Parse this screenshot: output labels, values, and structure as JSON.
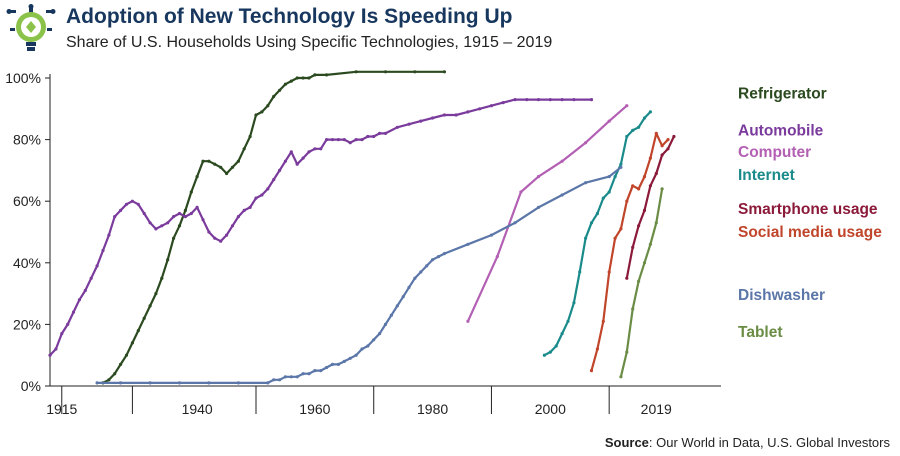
{
  "header": {
    "title": "Adoption of New Technology Is Speeding Up",
    "subtitle": "Share of U.S. Households Using Specific Technologies, 1915 – 2019",
    "logo_icon": "lightbulb-gear-icon"
  },
  "footer": {
    "source_label": "Source",
    "source_text": ": Our World in Data, U.S. Global Investors"
  },
  "chart_data": {
    "type": "line",
    "title": "Adoption of New Technology Is Speeding Up",
    "xlabel": "",
    "ylabel": "",
    "xlim": [
      1913,
      2027
    ],
    "ylim": [
      0,
      100
    ],
    "y_ticks": [
      0,
      20,
      40,
      60,
      80,
      100
    ],
    "y_tick_labels": [
      "0%",
      "20%",
      "40%",
      "60%",
      "80%",
      "100%"
    ],
    "x_tick_positions": [
      1915,
      1927,
      1948,
      1968,
      1988,
      2008
    ],
    "x_labels": [
      {
        "x": 1915,
        "label": "1915"
      },
      {
        "x": 1938,
        "label": "1940"
      },
      {
        "x": 1958,
        "label": "1960"
      },
      {
        "x": 1978,
        "label": "1980"
      },
      {
        "x": 1998,
        "label": "2000"
      },
      {
        "x": 2016,
        "label": "2019"
      }
    ],
    "series": [
      {
        "name": "Refrigerator",
        "color": "#2b4a1f",
        "legend_y": 95,
        "points": [
          [
            1922,
            1
          ],
          [
            1923,
            2
          ],
          [
            1924,
            4
          ],
          [
            1925,
            7
          ],
          [
            1926,
            10
          ],
          [
            1927,
            14
          ],
          [
            1928,
            18
          ],
          [
            1929,
            22
          ],
          [
            1930,
            26
          ],
          [
            1931,
            30
          ],
          [
            1932,
            35
          ],
          [
            1933,
            41
          ],
          [
            1934,
            48
          ],
          [
            1935,
            52
          ],
          [
            1936,
            57
          ],
          [
            1937,
            63
          ],
          [
            1938,
            68
          ],
          [
            1939,
            73
          ],
          [
            1940,
            73
          ],
          [
            1941,
            72
          ],
          [
            1942,
            71
          ],
          [
            1943,
            69
          ],
          [
            1944,
            71
          ],
          [
            1945,
            73
          ],
          [
            1946,
            77
          ],
          [
            1947,
            81
          ],
          [
            1948,
            88
          ],
          [
            1949,
            89
          ],
          [
            1950,
            91
          ],
          [
            1951,
            94
          ],
          [
            1952,
            96
          ],
          [
            1953,
            98
          ],
          [
            1954,
            99
          ],
          [
            1955,
            100
          ],
          [
            1956,
            100
          ],
          [
            1957,
            100
          ],
          [
            1958,
            101
          ],
          [
            1960,
            101
          ],
          [
            1965,
            102
          ],
          [
            1970,
            102
          ],
          [
            1975,
            102
          ],
          [
            1980,
            102
          ]
        ]
      },
      {
        "name": "Automobile",
        "color": "#7a3b9c",
        "legend_y": 83,
        "points": [
          [
            1913,
            10
          ],
          [
            1914,
            12
          ],
          [
            1915,
            17
          ],
          [
            1916,
            20
          ],
          [
            1917,
            24
          ],
          [
            1918,
            28
          ],
          [
            1919,
            31
          ],
          [
            1920,
            35
          ],
          [
            1921,
            39
          ],
          [
            1922,
            44
          ],
          [
            1923,
            49
          ],
          [
            1924,
            55
          ],
          [
            1925,
            57
          ],
          [
            1926,
            59
          ],
          [
            1927,
            60
          ],
          [
            1928,
            59
          ],
          [
            1929,
            56
          ],
          [
            1930,
            53
          ],
          [
            1931,
            51
          ],
          [
            1932,
            52
          ],
          [
            1933,
            53
          ],
          [
            1934,
            55
          ],
          [
            1935,
            56
          ],
          [
            1936,
            55
          ],
          [
            1937,
            56
          ],
          [
            1938,
            58
          ],
          [
            1939,
            54
          ],
          [
            1940,
            50
          ],
          [
            1941,
            48
          ],
          [
            1942,
            47
          ],
          [
            1943,
            49
          ],
          [
            1944,
            52
          ],
          [
            1945,
            55
          ],
          [
            1946,
            57
          ],
          [
            1947,
            58
          ],
          [
            1948,
            61
          ],
          [
            1949,
            62
          ],
          [
            1950,
            64
          ],
          [
            1951,
            67
          ],
          [
            1952,
            70
          ],
          [
            1953,
            73
          ],
          [
            1954,
            76
          ],
          [
            1955,
            72
          ],
          [
            1956,
            74
          ],
          [
            1957,
            76
          ],
          [
            1958,
            77
          ],
          [
            1959,
            77
          ],
          [
            1960,
            80
          ],
          [
            1961,
            80
          ],
          [
            1962,
            80
          ],
          [
            1963,
            80
          ],
          [
            1964,
            79
          ],
          [
            1965,
            80
          ],
          [
            1966,
            80
          ],
          [
            1967,
            81
          ],
          [
            1968,
            81
          ],
          [
            1969,
            82
          ],
          [
            1970,
            82
          ],
          [
            1972,
            84
          ],
          [
            1974,
            85
          ],
          [
            1976,
            86
          ],
          [
            1978,
            87
          ],
          [
            1980,
            88
          ],
          [
            1982,
            88
          ],
          [
            1984,
            89
          ],
          [
            1986,
            90
          ],
          [
            1988,
            91
          ],
          [
            1990,
            92
          ],
          [
            1992,
            93
          ],
          [
            1994,
            93
          ],
          [
            1996,
            93
          ],
          [
            1998,
            93
          ],
          [
            2000,
            93
          ],
          [
            2002,
            93
          ],
          [
            2005,
            93
          ]
        ]
      },
      {
        "name": "Computer",
        "color": "#b35fb3",
        "legend_y": 76,
        "points": [
          [
            1984,
            21
          ],
          [
            1989,
            42
          ],
          [
            1993,
            63
          ],
          [
            1996,
            68
          ],
          [
            2000,
            73
          ],
          [
            2004,
            79
          ],
          [
            2008,
            86
          ],
          [
            2011,
            91
          ]
        ]
      },
      {
        "name": "Internet",
        "color": "#1a8a8a",
        "legend_y": 68.5,
        "points": [
          [
            1997,
            10
          ],
          [
            1998,
            11
          ],
          [
            1999,
            13
          ],
          [
            2000,
            17
          ],
          [
            2001,
            21
          ],
          [
            2002,
            27
          ],
          [
            2003,
            37
          ],
          [
            2004,
            48
          ],
          [
            2005,
            53
          ],
          [
            2006,
            56
          ],
          [
            2007,
            61
          ],
          [
            2008,
            63
          ],
          [
            2009,
            68
          ],
          [
            2010,
            72
          ],
          [
            2011,
            81
          ],
          [
            2012,
            83
          ],
          [
            2013,
            84
          ],
          [
            2014,
            87
          ],
          [
            2015,
            89
          ]
        ]
      },
      {
        "name": "Smartphone usage",
        "color": "#8b1a3a",
        "legend_y": 57.5,
        "points": [
          [
            2011,
            35
          ],
          [
            2012,
            45
          ],
          [
            2013,
            52
          ],
          [
            2014,
            57
          ],
          [
            2015,
            65
          ],
          [
            2016,
            69
          ],
          [
            2017,
            75
          ],
          [
            2018,
            77
          ],
          [
            2019,
            81
          ]
        ]
      },
      {
        "name": "Social media usage",
        "color": "#c0452a",
        "legend_y": 50,
        "points": [
          [
            2005,
            5
          ],
          [
            2006,
            12
          ],
          [
            2007,
            21
          ],
          [
            2008,
            37
          ],
          [
            2009,
            48
          ],
          [
            2010,
            51
          ],
          [
            2011,
            60
          ],
          [
            2012,
            65
          ],
          [
            2013,
            64
          ],
          [
            2014,
            68
          ],
          [
            2015,
            74
          ],
          [
            2016,
            82
          ],
          [
            2017,
            78
          ],
          [
            2018,
            80
          ]
        ]
      },
      {
        "name": "Dishwasher",
        "color": "#5b76a8",
        "legend_y": 29.5,
        "points": [
          [
            1921,
            1
          ],
          [
            1925,
            1
          ],
          [
            1930,
            1
          ],
          [
            1935,
            1
          ],
          [
            1940,
            1
          ],
          [
            1945,
            1
          ],
          [
            1950,
            1
          ],
          [
            1951,
            2
          ],
          [
            1952,
            2
          ],
          [
            1953,
            3
          ],
          [
            1954,
            3
          ],
          [
            1955,
            3
          ],
          [
            1956,
            4
          ],
          [
            1957,
            4
          ],
          [
            1958,
            5
          ],
          [
            1959,
            5
          ],
          [
            1960,
            6
          ],
          [
            1961,
            7
          ],
          [
            1962,
            7
          ],
          [
            1963,
            8
          ],
          [
            1964,
            9
          ],
          [
            1965,
            10
          ],
          [
            1966,
            12
          ],
          [
            1967,
            13
          ],
          [
            1968,
            15
          ],
          [
            1969,
            17
          ],
          [
            1970,
            20
          ],
          [
            1971,
            23
          ],
          [
            1972,
            26
          ],
          [
            1973,
            29
          ],
          [
            1974,
            32
          ],
          [
            1975,
            35
          ],
          [
            1976,
            37
          ],
          [
            1977,
            39
          ],
          [
            1978,
            41
          ],
          [
            1979,
            42
          ],
          [
            1980,
            43
          ],
          [
            1984,
            46
          ],
          [
            1988,
            49
          ],
          [
            1992,
            53
          ],
          [
            1996,
            58
          ],
          [
            2000,
            62
          ],
          [
            2004,
            66
          ],
          [
            2008,
            68
          ],
          [
            2010,
            71
          ]
        ]
      },
      {
        "name": "Tablet",
        "color": "#6a8c45",
        "legend_y": 17.5,
        "points": [
          [
            2010,
            3
          ],
          [
            2011,
            11
          ],
          [
            2012,
            25
          ],
          [
            2013,
            34
          ],
          [
            2014,
            40
          ],
          [
            2015,
            46
          ],
          [
            2016,
            53
          ],
          [
            2017,
            64
          ]
        ]
      }
    ]
  }
}
